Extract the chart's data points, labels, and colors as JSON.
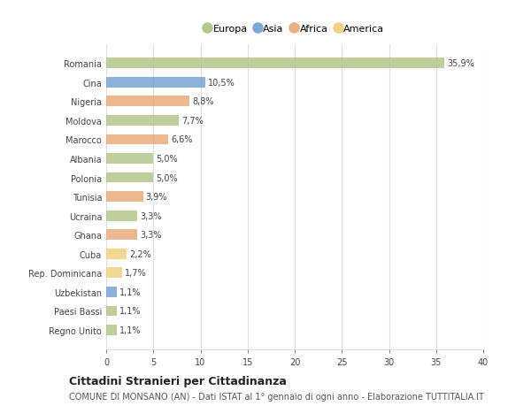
{
  "countries": [
    "Romania",
    "Cina",
    "Nigeria",
    "Moldova",
    "Marocco",
    "Albania",
    "Polonia",
    "Tunisia",
    "Ucraina",
    "Ghana",
    "Cuba",
    "Rep. Dominicana",
    "Uzbekistan",
    "Paesi Bassi",
    "Regno Unito"
  ],
  "values": [
    35.9,
    10.5,
    8.8,
    7.7,
    6.6,
    5.0,
    5.0,
    3.9,
    3.3,
    3.3,
    2.2,
    1.7,
    1.1,
    1.1,
    1.1
  ],
  "labels": [
    "35,9%",
    "10,5%",
    "8,8%",
    "7,7%",
    "6,6%",
    "5,0%",
    "5,0%",
    "3,9%",
    "3,3%",
    "3,3%",
    "2,2%",
    "1,7%",
    "1,1%",
    "1,1%",
    "1,1%"
  ],
  "colors": [
    "#a8c07a",
    "#6699cc",
    "#e8a06a",
    "#a8c07a",
    "#e8a06a",
    "#a8c07a",
    "#a8c07a",
    "#e8a06a",
    "#a8c07a",
    "#e8a06a",
    "#f0cc70",
    "#f0cc70",
    "#6699cc",
    "#a8c07a",
    "#a8c07a"
  ],
  "legend_labels": [
    "Europa",
    "Asia",
    "Africa",
    "America"
  ],
  "legend_colors": [
    "#a8c07a",
    "#6699cc",
    "#e8a06a",
    "#f0cc70"
  ],
  "title": "Cittadini Stranieri per Cittadinanza",
  "subtitle": "COMUNE DI MONSANO (AN) - Dati ISTAT al 1° gennaio di ogni anno - Elaborazione TUTTITALIA.IT",
  "xlim": [
    0,
    40
  ],
  "xticks": [
    0,
    5,
    10,
    15,
    20,
    25,
    30,
    35,
    40
  ],
  "background_color": "#ffffff",
  "grid_color": "#e0e0e0",
  "bar_height": 0.55,
  "title_fontsize": 9,
  "subtitle_fontsize": 7,
  "tick_fontsize": 7,
  "label_fontsize": 7,
  "legend_fontsize": 8
}
